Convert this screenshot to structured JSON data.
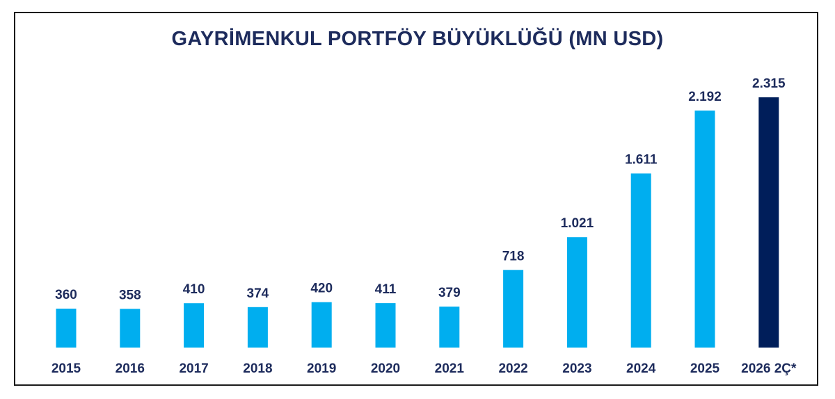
{
  "chart_data": {
    "type": "bar",
    "title": "GAYRİMENKUL PORTFÖY BÜYÜKLÜĞÜ (MN USD)",
    "categories": [
      "2015",
      "2016",
      "2017",
      "2018",
      "2019",
      "2020",
      "2021",
      "2022",
      "2023",
      "2024",
      "2025",
      "2026 2Ç*"
    ],
    "values": [
      360,
      358,
      410,
      374,
      420,
      411,
      379,
      718,
      1021,
      1611,
      2192,
      2315
    ],
    "value_labels": [
      "360",
      "358",
      "410",
      "374",
      "420",
      "411",
      "379",
      "718",
      "1.021",
      "1.611",
      "2.192",
      "2.315"
    ],
    "xlabel": "",
    "ylabel": "",
    "ylim": [
      0,
      2315
    ],
    "grid": false,
    "colors": {
      "bar": "#00aeef",
      "highlight_bar": "#001e5a",
      "text": "#1d2b5c"
    },
    "highlight_index": 11
  }
}
